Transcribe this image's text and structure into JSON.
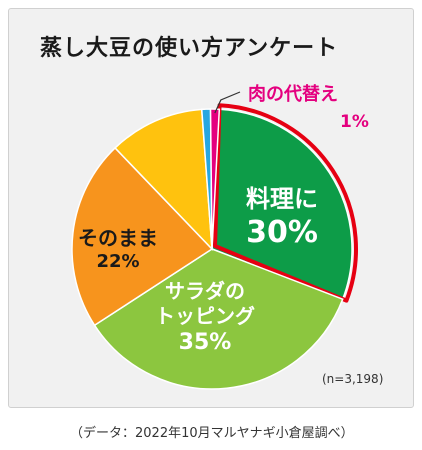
{
  "chart_data": {
    "type": "pie",
    "title": "蒸し大豆の使い方アンケート",
    "slices": [
      {
        "label_lines": [
          "料理に"
        ],
        "value_text": "30%",
        "value": 30,
        "color": "#0d9c48",
        "text_color": "#ffffff",
        "highlight": true
      },
      {
        "label_lines": [
          "サラダの",
          "トッピング"
        ],
        "value_text": "35%",
        "value": 35,
        "color": "#8cc63f",
        "text_color": "#ffffff",
        "highlight": false
      },
      {
        "label_lines": [
          "そのまま"
        ],
        "value_text": "22%",
        "value": 22,
        "color": "#f7941d",
        "text_color": "#1a1a1a",
        "highlight": false
      },
      {
        "label_lines": [
          ""
        ],
        "value_text": "",
        "value": 11,
        "color": "#ffc20e",
        "text_color": "#1a1a1a",
        "highlight": false
      },
      {
        "label_lines": [
          ""
        ],
        "value_text": "",
        "value": 1,
        "color": "#27a7e0",
        "text_color": "#1a1a1a",
        "highlight": false
      },
      {
        "label_lines": [
          "肉の代替え"
        ],
        "value_text": "1%",
        "value": 1,
        "color": "#e4007f",
        "text_color": "#e4007f",
        "highlight": false
      }
    ],
    "sample_note": "(n=3,198)",
    "source": "（データ：2022年10月マルヤナギ小倉屋調べ）"
  }
}
